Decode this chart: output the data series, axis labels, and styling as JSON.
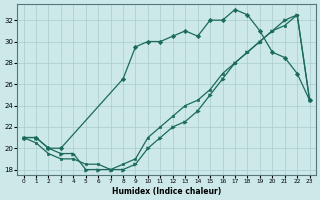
{
  "xlabel": "Humidex (Indice chaleur)",
  "bg_color": "#cce8e8",
  "grid_color": "#aacccc",
  "line_color": "#1a6b5a",
  "xlim": [
    -0.5,
    23.5
  ],
  "ylim": [
    17.5,
    33.5
  ],
  "xticks": [
    0,
    1,
    2,
    3,
    4,
    5,
    6,
    7,
    8,
    9,
    10,
    11,
    12,
    13,
    14,
    15,
    16,
    17,
    18,
    19,
    20,
    21,
    22,
    23
  ],
  "yticks": [
    18,
    20,
    22,
    24,
    26,
    28,
    30,
    32
  ],
  "line_top_x": [
    0,
    1,
    2,
    3,
    8,
    9,
    10,
    11,
    12,
    13,
    14,
    15,
    16,
    17,
    18,
    19,
    20,
    21,
    22,
    23
  ],
  "line_top_y": [
    21,
    21,
    20,
    20,
    26.5,
    29.5,
    30,
    30,
    30.5,
    31,
    30.5,
    32,
    32,
    33,
    32.5,
    31,
    29,
    28.5,
    27,
    24.5
  ],
  "line_bot_x": [
    0,
    1,
    2,
    3,
    4,
    5,
    6,
    7,
    8,
    9,
    10,
    11,
    12,
    13,
    14,
    15,
    16,
    17,
    18,
    19,
    20,
    21,
    22,
    23
  ],
  "line_bot_y": [
    21,
    21,
    20,
    19.5,
    19.5,
    18,
    18,
    18,
    18,
    18.5,
    20,
    21,
    22,
    22.5,
    23.5,
    25,
    26.5,
    28,
    29,
    30,
    31,
    32,
    32.5,
    24.5
  ],
  "line_mid_x": [
    0,
    1,
    2,
    3,
    4,
    5,
    6,
    7,
    8,
    9,
    10,
    11,
    12,
    13,
    14,
    15,
    16,
    17,
    18,
    19,
    20,
    21,
    22,
    23
  ],
  "line_mid_y": [
    21,
    20.5,
    19.5,
    19,
    19,
    18.5,
    18.5,
    18,
    18.5,
    19,
    21,
    22,
    23,
    24,
    24.5,
    25.5,
    27,
    28,
    29,
    30,
    31,
    31.5,
    32.5,
    24.5
  ]
}
